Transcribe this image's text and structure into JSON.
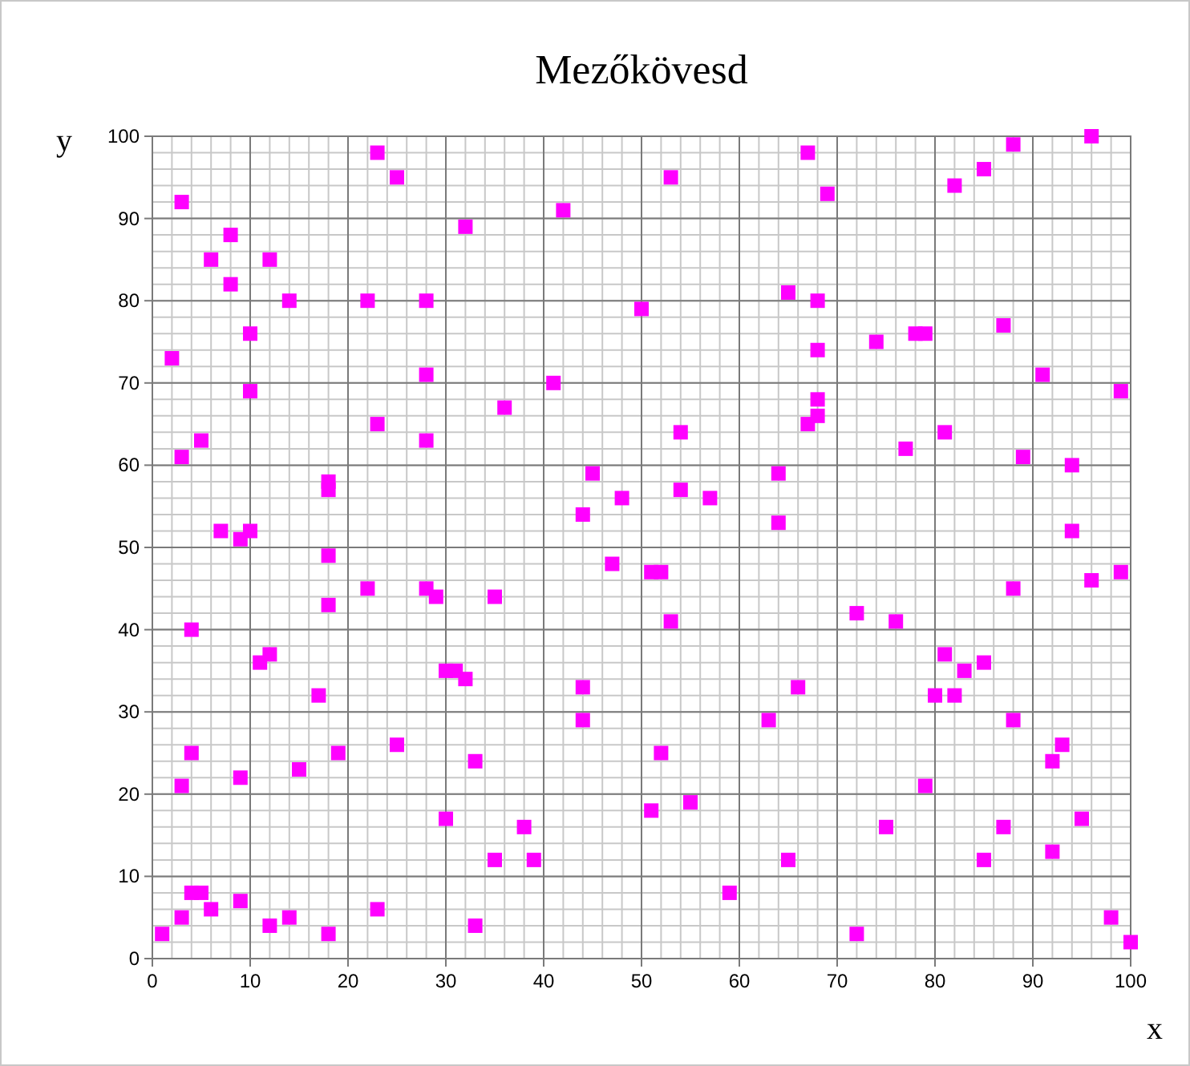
{
  "chart_data": {
    "type": "scatter",
    "title": "Mezőkövesd",
    "xlabel": "x",
    "ylabel": "y",
    "xlim": [
      0,
      100
    ],
    "ylim": [
      0,
      100
    ],
    "xticks": [
      0,
      10,
      20,
      30,
      40,
      50,
      60,
      70,
      80,
      90,
      100
    ],
    "yticks": [
      0,
      10,
      20,
      30,
      40,
      50,
      60,
      70,
      80,
      90,
      100
    ],
    "grid": true,
    "marker": "square",
    "series": [
      {
        "color": "#ff00ff",
        "x": [
          96,
          23,
          67,
          88,
          3,
          25,
          53,
          85,
          42,
          32,
          69,
          8,
          6,
          12,
          8,
          14,
          22,
          28,
          50,
          65,
          68,
          82,
          87,
          74,
          78,
          79,
          68,
          2,
          10,
          28,
          41,
          91,
          10,
          99,
          68,
          68,
          67,
          36,
          23,
          3,
          5,
          28,
          54,
          81,
          77,
          89,
          94,
          64,
          45,
          18,
          18,
          54,
          57,
          48,
          44,
          64,
          7,
          10,
          9,
          94,
          18,
          47,
          51,
          52,
          99,
          96,
          22,
          28,
          29,
          35,
          88,
          18,
          72,
          76,
          53,
          4,
          12,
          11,
          81,
          30,
          31,
          32,
          83,
          85,
          17,
          80,
          82,
          44,
          66,
          88,
          44,
          63,
          93,
          4,
          19,
          52,
          25,
          33,
          92,
          3,
          79,
          9,
          15,
          55,
          51,
          30,
          95,
          38,
          75,
          87,
          35,
          39,
          65,
          85,
          92,
          59,
          4,
          5,
          9,
          3,
          6,
          14,
          12,
          23,
          33,
          18,
          1,
          72,
          98,
          100
        ],
        "values": [
          100,
          98,
          98,
          99,
          92,
          95,
          95,
          96,
          91,
          89,
          93,
          88,
          85,
          85,
          82,
          80,
          80,
          80,
          79,
          81,
          80,
          94,
          77,
          75,
          76,
          76,
          74,
          73,
          76,
          71,
          70,
          71,
          69,
          69,
          68,
          66,
          65,
          67,
          65,
          61,
          63,
          63,
          64,
          64,
          62,
          61,
          60,
          59,
          59,
          58,
          57,
          57,
          56,
          56,
          54,
          53,
          52,
          52,
          51,
          52,
          49,
          48,
          47,
          47,
          47,
          46,
          45,
          45,
          44,
          44,
          45,
          43,
          42,
          41,
          41,
          40,
          37,
          36,
          37,
          35,
          35,
          34,
          35,
          36,
          32,
          32,
          32,
          33,
          33,
          29,
          29,
          29,
          26,
          25,
          25,
          25,
          26,
          24,
          24,
          21,
          21,
          22,
          23,
          19,
          18,
          17,
          17,
          16,
          16,
          16,
          12,
          12,
          12,
          12,
          13,
          8,
          8,
          8,
          7,
          5,
          6,
          5,
          4,
          6,
          4,
          3,
          3,
          3,
          5,
          2
        ]
      }
    ]
  }
}
